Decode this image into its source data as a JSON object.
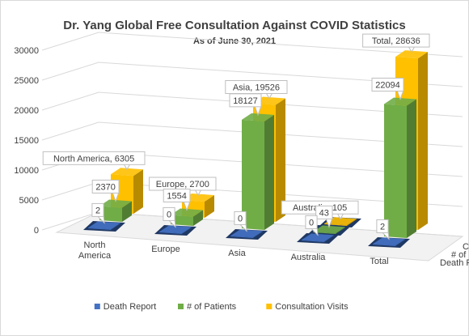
{
  "chart_data": {
    "type": "bar",
    "title": "Dr. Yang Global Free Consultation Against COVID Statistics",
    "subtitle": "As of June 30, 2021",
    "categories": [
      "North America",
      "Europe",
      "Asia",
      "Australia",
      "Total"
    ],
    "series": [
      {
        "name": "Death Report",
        "values": [
          2,
          0,
          0,
          0,
          2
        ],
        "color": "#4472c4"
      },
      {
        "name": "# of Patients",
        "values": [
          2370,
          1554,
          18127,
          43,
          22094
        ],
        "color": "#70ad47"
      },
      {
        "name": "Consultation Visits",
        "values": [
          6305,
          2700,
          19526,
          105,
          28636
        ],
        "color": "#ffc000"
      }
    ],
    "data_labels": {
      "Death Report": [
        "2",
        "0",
        "0",
        "0",
        "2"
      ],
      "# of Patients": [
        "2370",
        "1554",
        "18127",
        "43",
        "22094"
      ],
      "Consultation Visits": [
        "North America, 6305",
        "Europe, 2700",
        "Asia, 19526",
        "Australia, 105",
        "Total, 28636"
      ]
    },
    "yticks": [
      "0",
      "5000",
      "10000",
      "15000",
      "20000",
      "25000",
      "30000"
    ],
    "ylim": [
      0,
      30000
    ],
    "grid": true,
    "legend_position": "bottom",
    "three_d": true
  }
}
